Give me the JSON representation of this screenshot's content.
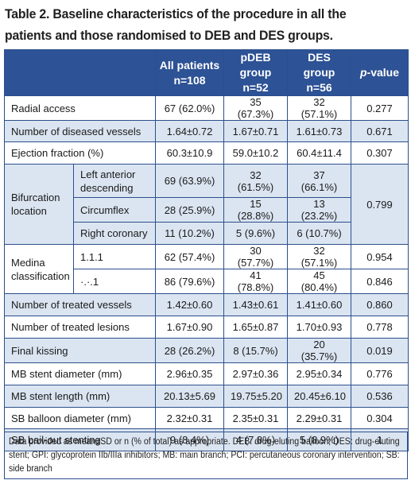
{
  "caption": "Table 2. Baseline characteristics of the procedure in all the patients and those randomised to DEB and DES groups.",
  "headers": {
    "all_line1": "All patients",
    "all_line2": "n=108",
    "pdeb_line1": "pDEB group",
    "pdeb_line2": "n=52",
    "des_line1": "DES group",
    "des_line2": "n=56",
    "pvalue_p": "p",
    "pvalue_rest": "-value"
  },
  "rows": {
    "radial": {
      "label": "Radial access",
      "all": "67 (62.0%)",
      "pdeb": "35 (67.3%)",
      "des": "32 (57.1%)",
      "p": "0.277"
    },
    "diseased": {
      "label": "Number of diseased vessels",
      "all": "1.64±0.72",
      "pdeb": "1.67±0.71",
      "des": "1.61±0.73",
      "p": "0.671"
    },
    "ef": {
      "label": "Ejection fraction (%)",
      "all": "60.3±10.9",
      "pdeb": "59.0±10.2",
      "des": "60.4±11.4",
      "p": "0.307"
    },
    "bif_group": "Bifurcation location",
    "bif_p": "0.799",
    "lad": {
      "label": "Left anterior descending",
      "all": "69 (63.9%)",
      "pdeb": "32 (61.5%)",
      "des": "37 (66.1%)"
    },
    "cx": {
      "label": "Circumflex",
      "all": "28 (25.9%)",
      "pdeb": "15 (28.8%)",
      "des": "13 (23.2%)"
    },
    "rca": {
      "label": "Right coronary",
      "all": "11 (10.2%)",
      "pdeb": "5 (9.6%)",
      "des": "6 (10.7%)"
    },
    "medina_group": "Medina classification",
    "m111": {
      "label": "1.1.1",
      "all": "62 (57.4%)",
      "pdeb": "30 (57.7%)",
      "des": "32 (57.1%)",
      "p": "0.954"
    },
    "mx1": {
      "label": "·.·.1",
      "all": "86 (79.6%)",
      "pdeb": "41 (78.8%)",
      "des": "45 (80.4%)",
      "p": "0.846"
    },
    "treated_vessels": {
      "label": "Number of treated vessels",
      "all": "1.42±0.60",
      "pdeb": "1.43±0.61",
      "des": "1.41±0.60",
      "p": "0.860"
    },
    "treated_lesions": {
      "label": "Number of treated lesions",
      "all": "1.67±0.90",
      "pdeb": "1.65±0.87",
      "des": "1.70±0.93",
      "p": "0.778"
    },
    "kissing": {
      "label": "Final kissing",
      "all": "28 (26.2%)",
      "pdeb": "8 (15.7%)",
      "des": "20 (35.7%)",
      "p": "0.019"
    },
    "mb_diam": {
      "label": "MB stent diameter (mm)",
      "all": "2.96±0.35",
      "pdeb": "2.97±0.36",
      "des": "2.95±0.34",
      "p": "0.776"
    },
    "mb_len": {
      "label": "MB stent length (mm)",
      "all": "20.13±5.69",
      "pdeb": "19.75±5.20",
      "des": "20.45±6.10",
      "p": "0.536"
    },
    "sb_diam": {
      "label": "SB balloon diameter (mm)",
      "all": "2.32±0.31",
      "pdeb": "2.35±0.31",
      "des": "2.29±0.31",
      "p": "0.304"
    },
    "sb_bail": {
      "label": "SB bail-out stenting",
      "all": "9 (8.4%)",
      "pdeb": "4 (7.8%)",
      "des": "5 (8.9%)",
      "p": "1"
    }
  },
  "footnote": "Data provided as mean±SD or n (% of total) as appropriate. DEB: drug-eluting balloon; DES: drug-eluting stent; GPI: glycoprotein IIb/IIIa inhibitors; MB: main branch; PCI: percutaneous coronary intervention; SB: side branch",
  "colors": {
    "header_bg": "#2d5295",
    "stripe": "#dbe5f1",
    "border": "#2c4f8c"
  }
}
